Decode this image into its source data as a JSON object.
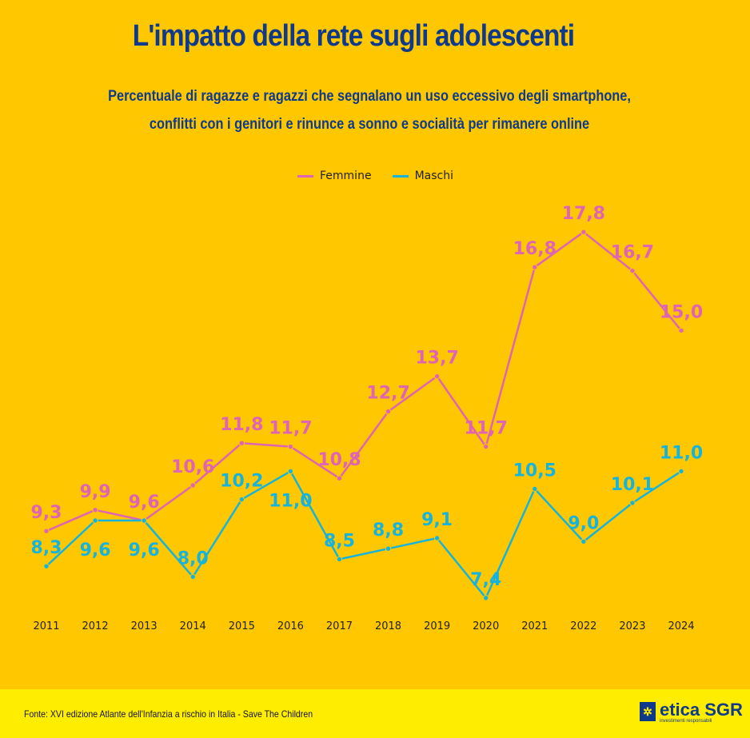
{
  "colors": {
    "background": "#FFC700",
    "footer": "#FFED00",
    "title": "#0F3A8C",
    "femmine": "#E064B4",
    "maschi": "#16B4DC"
  },
  "chart_data": {
    "type": "line",
    "title": "L'impatto della rete sugli adolescenti",
    "subtitle": [
      "Percentuale di ragazze e ragazzi che segnalano un uso eccessivo degli smartphone,",
      "conflitti con i genitori e rinunce a sonno e socialità per rimanere online"
    ],
    "categories": [
      "2011",
      "2012",
      "2013",
      "2014",
      "2015",
      "2016",
      "2017",
      "2018",
      "2019",
      "2020",
      "2021",
      "2022",
      "2023",
      "2024"
    ],
    "series": [
      {
        "name": "Femmine",
        "values": [
          9.3,
          9.9,
          9.6,
          10.6,
          11.8,
          11.7,
          10.8,
          12.7,
          13.7,
          11.7,
          16.8,
          17.8,
          16.7,
          15.0
        ]
      },
      {
        "name": "Maschi",
        "values": [
          8.3,
          9.6,
          9.6,
          8.0,
          10.2,
          11.0,
          8.5,
          8.8,
          9.1,
          7.4,
          10.5,
          9.0,
          10.1,
          11.0
        ]
      }
    ],
    "legend": "top-center",
    "grid": false,
    "ylim": [
      7.0,
      18.6
    ],
    "decimal_separator": ","
  },
  "footer": {
    "source": "Fonte: XVI edizione Atlante dell'Infanzia a rischio in Italia - Save The Children",
    "logo": "etica SGR",
    "logo_tagline": "investimenti responsabili"
  }
}
